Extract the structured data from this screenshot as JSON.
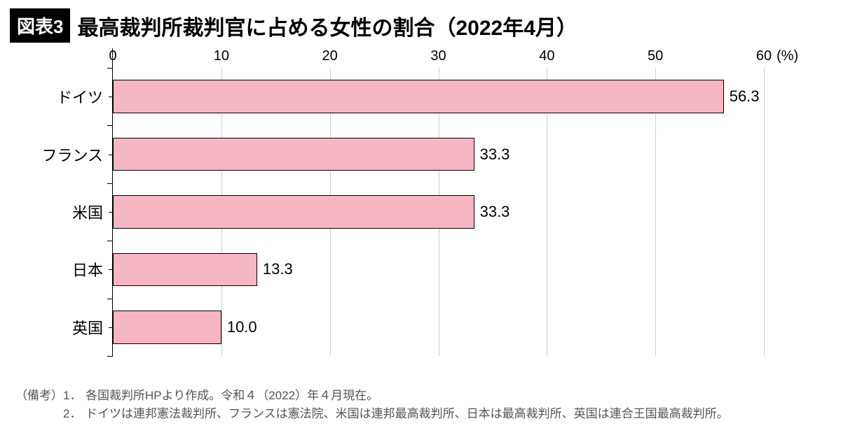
{
  "header": {
    "badge": "図表3",
    "title": "最高裁判所裁判官に占める女性の割合（2022年4月）"
  },
  "chart": {
    "type": "bar",
    "orientation": "horizontal",
    "xlim": [
      0,
      60
    ],
    "xtick_step": 10,
    "xticks": [
      0,
      10,
      20,
      30,
      40,
      50,
      60
    ],
    "x_unit_label": "(%)",
    "bar_color": "#f6b6c3",
    "bar_border_color": "#000000",
    "grid_color": "#cfcfcf",
    "axis_color": "#000000",
    "background_color": "#ffffff",
    "label_fontsize": 22,
    "tick_fontsize": 20,
    "bar_height_ratio": 0.58,
    "categories": [
      "ドイツ",
      "フランス",
      "米国",
      "日本",
      "英国"
    ],
    "values": [
      56.3,
      33.3,
      33.3,
      13.3,
      10.0
    ],
    "value_labels": [
      "56.3",
      "33.3",
      "33.3",
      "13.3",
      "10.0"
    ]
  },
  "notes": {
    "lead": "（備考）",
    "items": [
      {
        "idx": "1．",
        "text": "各国裁判所HPより作成。令和４（2022）年４月現在。"
      },
      {
        "idx": "2．",
        "text": "ドイツは連邦憲法裁判所、フランスは憲法院、米国は連邦最高裁判所、日本は最高裁判所、英国は連合王国最高裁判所。"
      }
    ]
  }
}
